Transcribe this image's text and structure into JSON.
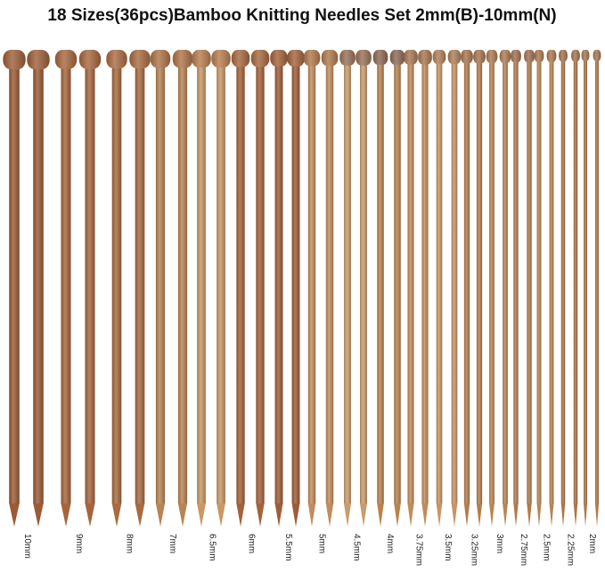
{
  "title": "18 Sizes(36pcs)Bamboo Knitting Needles Set 2mm(B)-10mm(N)",
  "sizes": [
    "10mm",
    "9mm",
    "8mm",
    "7mm",
    "6.5mm",
    "6mm",
    "5.5mm",
    "5mm",
    "4.5mm",
    "4mm",
    "3.75mm",
    "3.5mm",
    "3.25mm",
    "3mm",
    "2.75mm",
    "2.5mm",
    "2.25mm",
    "2mm"
  ]
}
